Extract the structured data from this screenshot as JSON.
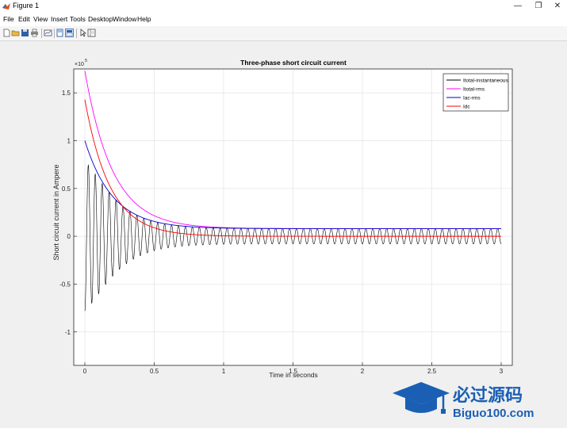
{
  "window": {
    "title": "Figure 1"
  },
  "menu": [
    "File",
    "Edit",
    "View",
    "Insert",
    "Tools",
    "Desktop",
    "Window",
    "Help"
  ],
  "toolbar": [
    "new-figure-icon",
    "open-file-icon",
    "save-icon",
    "print-icon",
    "link-plot-icon",
    "dock-icon",
    "property-editor-icon",
    "pointer-icon",
    "plot-browser-icon"
  ],
  "chart_data": {
    "type": "line",
    "title": "Three-phase short circuit current",
    "xlabel": "Time in seconds",
    "ylabel": "Short circuit current in Ampere",
    "exponent_label": "×10",
    "exponent": "5",
    "xlim": [
      -0.08,
      3.08
    ],
    "ylim": [
      -1.35,
      1.75
    ],
    "xticks": [
      0,
      0.5,
      1,
      1.5,
      2,
      2.5,
      3
    ],
    "xtick_labels": [
      "0",
      "0.5",
      "1",
      "1.5",
      "2",
      "2.5",
      "3"
    ],
    "yticks": [
      -1,
      -0.5,
      0,
      0.5,
      1,
      1.5
    ],
    "ytick_labels": [
      "-1",
      "-0.5",
      "0",
      "0.5",
      "1",
      "1.5"
    ],
    "grid": true,
    "legend_position": "top-right",
    "series": [
      {
        "name": "Itotal-instantaneous",
        "color": "#000000",
        "kind": "oscillation",
        "t_end": 3.0,
        "frequency_hz": 20,
        "steady_amplitude": 0.08,
        "peak_amplitude": 1.3,
        "decay_time": 0.18
      },
      {
        "name": "Itotal-rms",
        "color": "#ff00ff",
        "kind": "envelope",
        "t_end": 3.0,
        "start": 1.73,
        "final": 0.08,
        "decay_time": 0.2
      },
      {
        "name": "Iac-rms",
        "color": "#0000cc",
        "kind": "envelope",
        "t_end": 3.0,
        "start": 1.0,
        "final": 0.08,
        "decay_time": 0.2
      },
      {
        "name": "Idc",
        "color": "#ff0000",
        "kind": "envelope",
        "t_end": 3.0,
        "start": 1.43,
        "final": 0.0,
        "decay_time": 0.18
      }
    ]
  },
  "watermark": {
    "cn_text": "必过源码",
    "url_text": "Biguo100.com"
  }
}
